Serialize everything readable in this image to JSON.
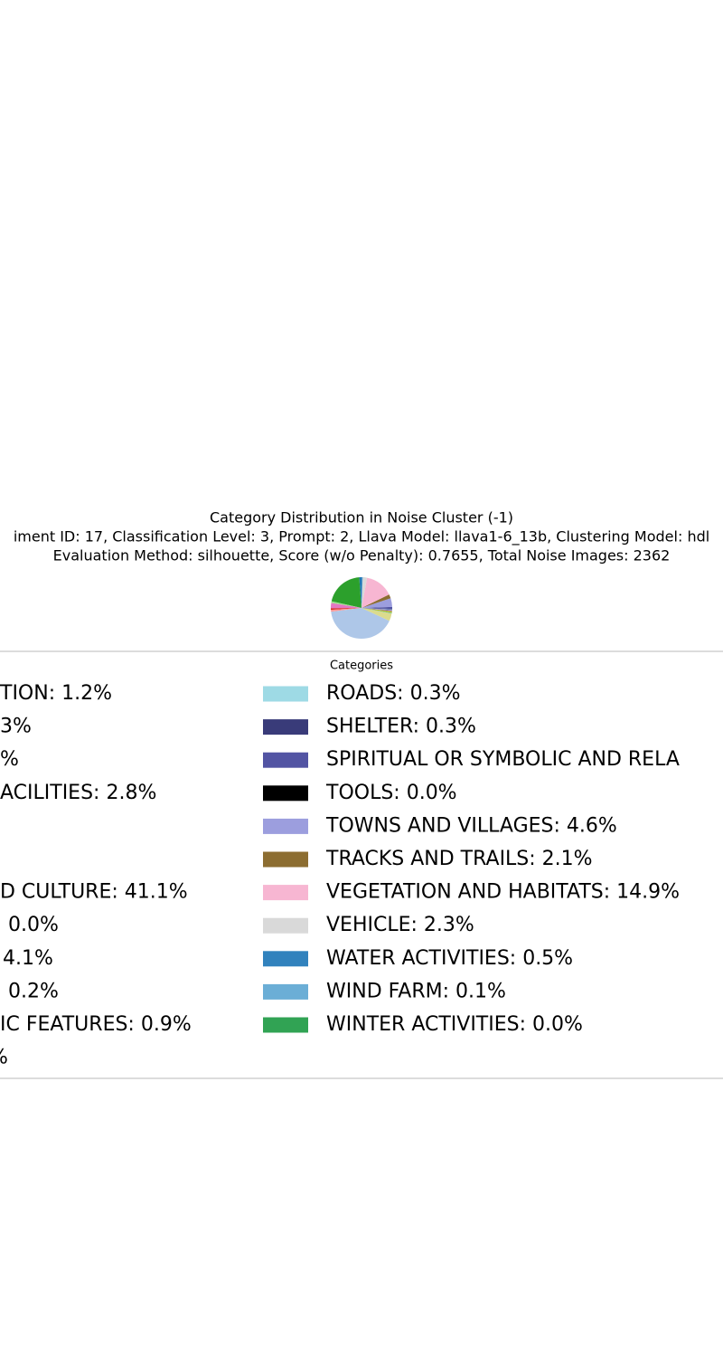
{
  "chart_data": {
    "type": "pie",
    "title": "Category Distribution in Noise Cluster (-1)",
    "subtitle": [
      "iment ID: 17, Classification Level: 3, Prompt: 2, Llava Model: llava1-6_13b, Clustering Model: hdl",
      "Evaluation Method: silhouette, Score (w/o Penalty): 0.7655, Total Noise Images: 2362"
    ],
    "legend_title": "Categories",
    "categories": [
      "TION: 1.2%",
      "3%",
      "%",
      "ACILITIES: 2.8%",
      null,
      null,
      "D CULTURE: 41.1%",
      "0.0%",
      "4.1%",
      "0.2%",
      "IC FEATURES: 0.9%",
      "%",
      "ROADS: 0.3%",
      "SHELTER: 0.3%",
      "SPIRITUAL OR SYMBOLIC AND RELA",
      "TOOLS: 0.0%",
      "TOWNS AND VILLAGES: 4.6%",
      "TRACKS AND TRAILS: 2.1%",
      "VEGETATION AND HABITATS: 14.9%",
      "VEHICLE: 2.3%",
      "WATER ACTIVITIES: 0.5%",
      "WIND FARM: 0.1%",
      "WINTER ACTIVITIES: 0.0%"
    ],
    "values": [
      1.2,
      20.3,
      0.9,
      2.8,
      0.8,
      1.0,
      41.1,
      0.0,
      4.1,
      0.2,
      0.9,
      0.6,
      0.3,
      0.3,
      1.0,
      0.0,
      4.6,
      2.1,
      14.9,
      2.3,
      0.5,
      0.1,
      0.0
    ],
    "colors": [
      "#1f77b4",
      "#2ca02c",
      "#98df8a",
      "#e377c2",
      "#d62728",
      "#ff9896",
      "#aec7e8",
      "#c5b0d5",
      "#dbdb8d",
      "#17becf",
      "#bcbd22",
      "#9467bd",
      "#9edae5",
      "#393b79",
      "#5254a3",
      "#000000",
      "#9c9ede",
      "#8c6d31",
      "#f7b6d2",
      "#d9d9d9",
      "#3182bd",
      "#6baed6",
      "#31a354"
    ],
    "start_angle": 90
  }
}
